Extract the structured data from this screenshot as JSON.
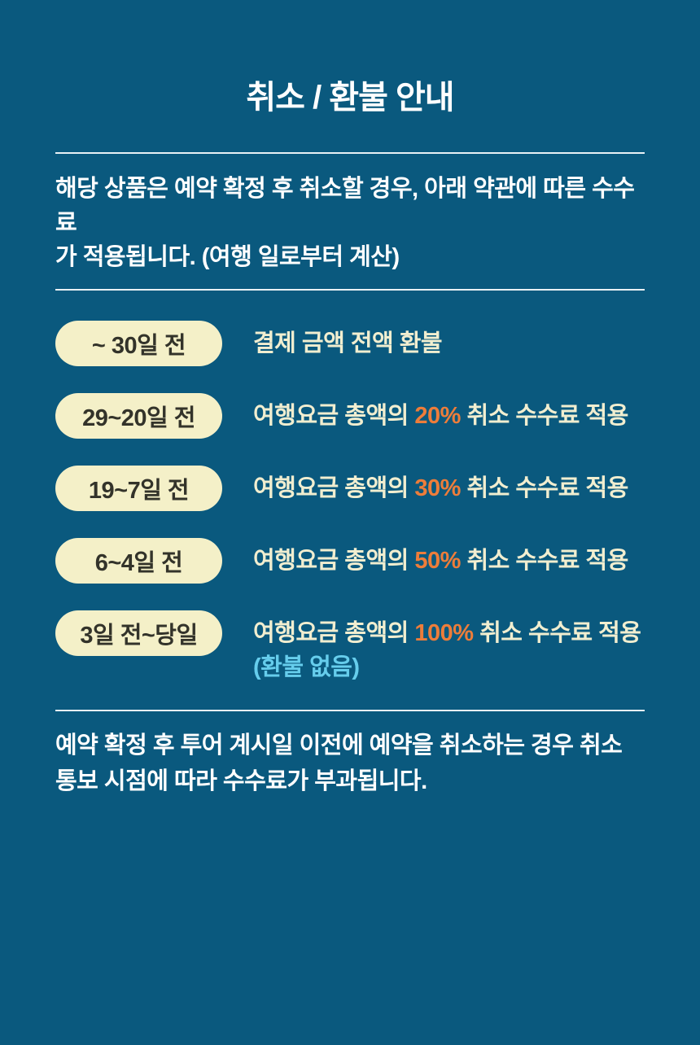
{
  "title": "취소 / 환불 안내",
  "intro": {
    "lines": [
      "해당 상품은 예약 확정 후 취소할 경우, 아래 약관에 따른 수수료",
      "가 적용됩니다. (여행 일로부터 계산)"
    ]
  },
  "rows": [
    {
      "period": "~ 30일 전",
      "prefix": "결제 금액 전액 환불",
      "highlight": "",
      "suffix": "",
      "note": ""
    },
    {
      "period": "29~20일 전",
      "prefix": "여행요금 총액의 ",
      "highlight": "20%",
      "suffix": " 취소 수수료 적용",
      "note": ""
    },
    {
      "period": "19~7일 전",
      "prefix": "여행요금 총액의 ",
      "highlight": "30%",
      "suffix": " 취소 수수료 적용",
      "note": ""
    },
    {
      "period": "6~4일 전",
      "prefix": "여행요금 총액의 ",
      "highlight": "50%",
      "suffix": " 취소 수수료 적용",
      "note": ""
    },
    {
      "period": "3일 전~당일",
      "prefix": "여행요금 총액의 ",
      "highlight": "100%",
      "suffix": " 취소 수수료 적용",
      "note": "(환불 없음)"
    }
  ],
  "footer": {
    "lines": [
      "예약 확정 후 투어 계시일 이전에 예약을 취소하는 경우 취소",
      "통보 시점에 따라 수수료가 부과됩니다."
    ]
  },
  "colors": {
    "background": "#0a597e",
    "badge_bg": "#f4f0c8",
    "badge_text": "#33332a",
    "body_text": "#f1eed0",
    "heading_text": "#ffffff",
    "highlight": "#ed7d3a",
    "note": "#66cdec",
    "divider": "#e9f1f5"
  }
}
